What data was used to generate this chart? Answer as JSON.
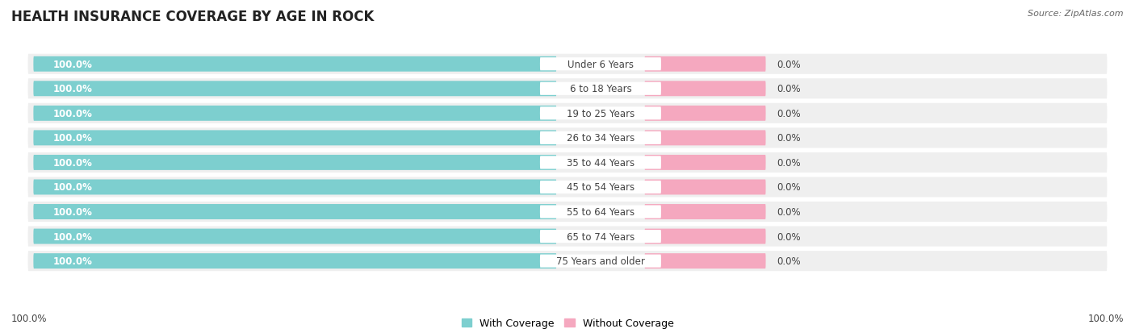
{
  "title": "HEALTH INSURANCE COVERAGE BY AGE IN ROCK",
  "source": "Source: ZipAtlas.com",
  "categories": [
    "Under 6 Years",
    "6 to 18 Years",
    "19 to 25 Years",
    "26 to 34 Years",
    "35 to 44 Years",
    "45 to 54 Years",
    "55 to 64 Years",
    "65 to 74 Years",
    "75 Years and older"
  ],
  "with_coverage": [
    100.0,
    100.0,
    100.0,
    100.0,
    100.0,
    100.0,
    100.0,
    100.0,
    100.0
  ],
  "without_coverage": [
    0.0,
    0.0,
    0.0,
    0.0,
    0.0,
    0.0,
    0.0,
    0.0,
    0.0
  ],
  "color_with": "#7DCFCF",
  "color_without": "#F5A8BF",
  "row_bg_color": "#EFEFEF",
  "text_color_with": "#FFFFFF",
  "text_color_label": "#444444",
  "text_color_value": "#444444",
  "legend_label_with": "With Coverage",
  "legend_label_without": "Without Coverage",
  "footer_value": "100.0%",
  "title_fontsize": 12,
  "label_fontsize": 8.5,
  "value_fontsize": 8.5,
  "background_color": "#FFFFFF"
}
